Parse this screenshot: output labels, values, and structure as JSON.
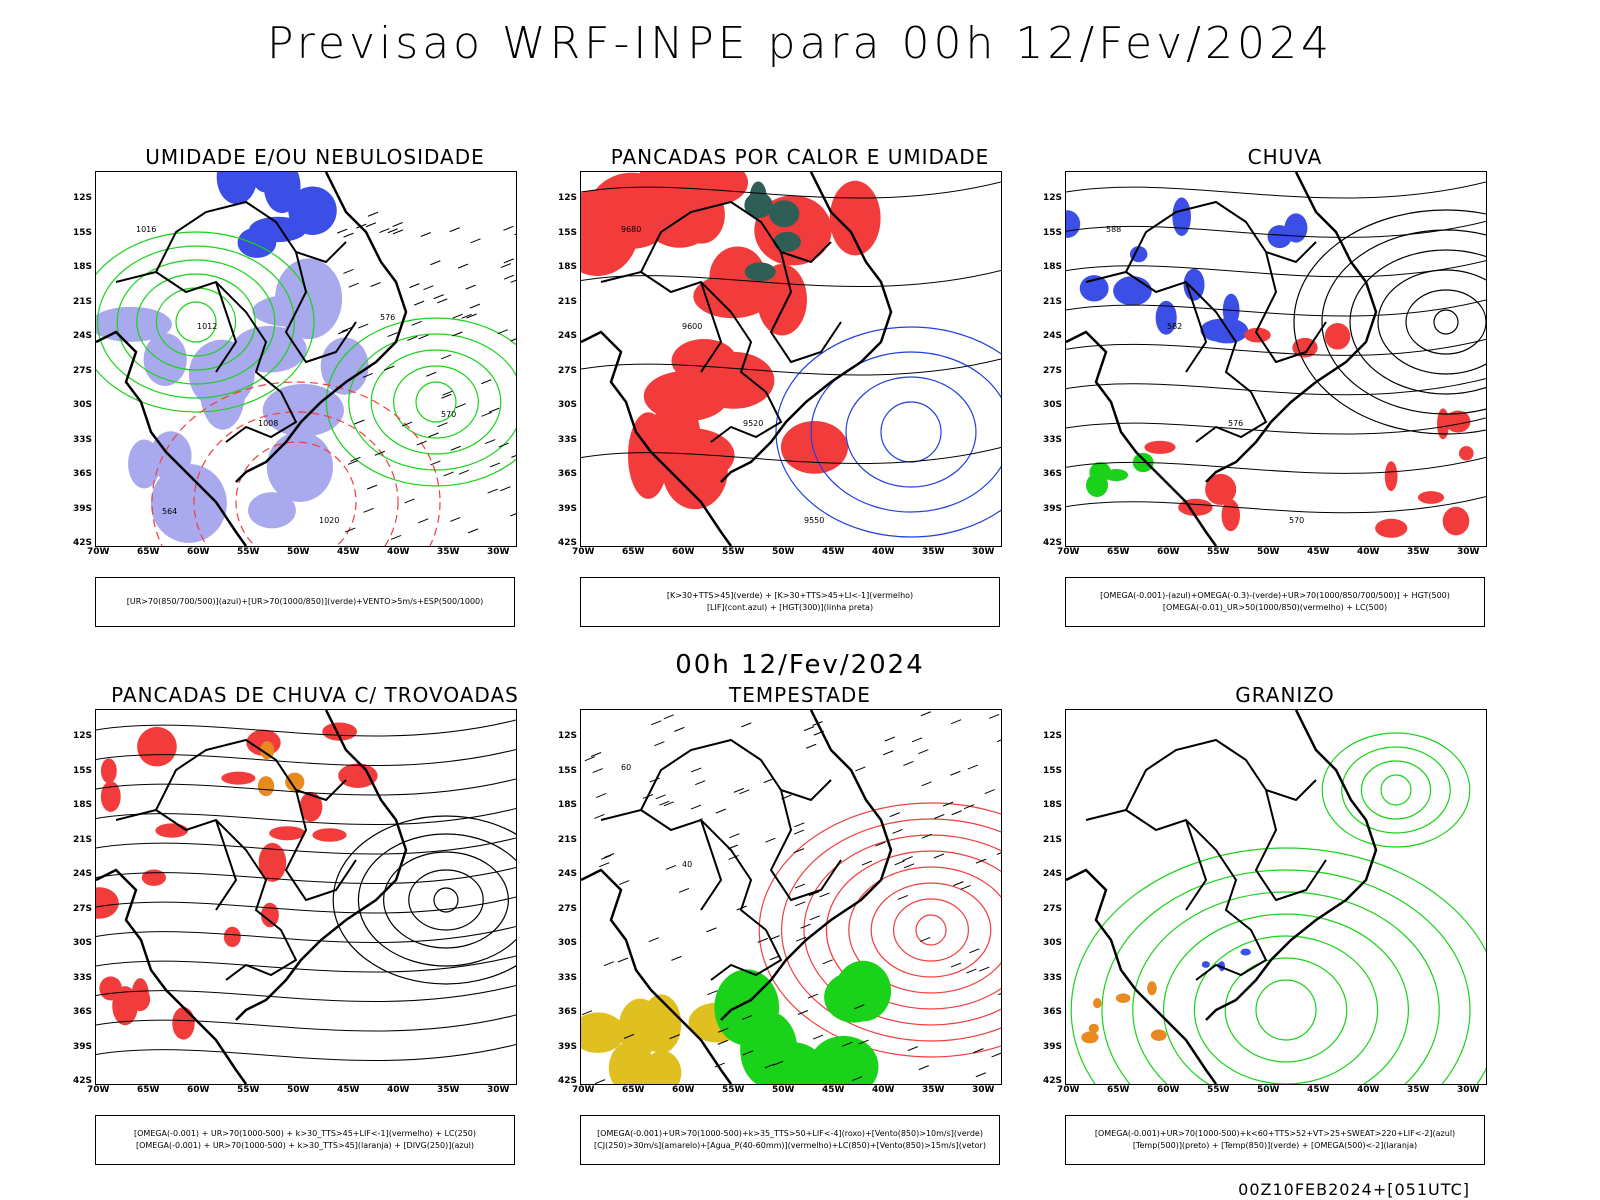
{
  "title": "Previsao WRF-INPE  para 00h 12/Fev/2024",
  "subtitle": "00h 12/Fev/2024",
  "footer": "00Z10FEB2024+[051UTC]",
  "lat_labels": [
    "12S",
    "15S",
    "18S",
    "21S",
    "24S",
    "27S",
    "30S",
    "33S",
    "36S",
    "39S",
    "42S"
  ],
  "lon_labels": [
    "70W",
    "65W",
    "60W",
    "55W",
    "50W",
    "45W",
    "40W",
    "35W",
    "30W"
  ],
  "colors": {
    "blue": "#3b4fe6",
    "lavender": "#a9a9ee",
    "green": "#19d219",
    "red": "#f23c3c",
    "darkgreen": "#2e5e55",
    "orange": "#e88a1f",
    "yellow": "#e0c020"
  },
  "panels": [
    {
      "title": "UMIDADE E/OU NEBULOSIDADE",
      "legend": [
        "[UR>70(850/700/500)](azul)+[UR>70(1000/850)](verde)+VENTO>5m/s+ESP(500/1000)"
      ],
      "labels": [
        "1016",
        "1012",
        "1008",
        "1020",
        "576",
        "570",
        "564"
      ]
    },
    {
      "title": "PANCADAS POR CALOR E UMIDADE",
      "legend": [
        "[K>30+TTS>45](verde) + [K>30+TTS>45+LI<-1](vermelho)",
        "[LIF](cont.azul) + [HGT(300)](linha preta)"
      ],
      "labels": [
        "9680",
        "9600",
        "9520",
        "9550"
      ]
    },
    {
      "title": "CHUVA",
      "legend": [
        "[OMEGA(-0.001)-(azul)+OMEGA(-0.3)-(verde)+UR>70(1000/850/700/500)] + HGT(500)",
        "[OMEGA(-0.01)_UR>50(1000/850)(vermelho) + LC(500)"
      ],
      "labels": [
        "588",
        "582",
        "576",
        "570"
      ]
    },
    {
      "title": "PANCADAS DE CHUVA C/ TROVOADAS",
      "legend": [
        "[OMEGA(-0.001) + UR>70(1000-500) + k>30_TTS>45+LIF<-1](vermelho) + LC(250)",
        "[OMEGA(-0.001) + UR>70(1000-500) + k>30_TTS>45](laranja) + [DIVG(250)](azul)"
      ],
      "labels": []
    },
    {
      "title": "TEMPESTADE",
      "legend": [
        "[OMEGA(-0.001)+UR>70(1000-500)+k>35_TTS>50+LIF<-4](roxo)+[Vento(850)>10m/s](verde)",
        "[CJ(250)>30m/s](amarelo)+[Agua_P(40-60mm)](vermelho)+LC(850)+[Vento(850)>15m/s](vetor)"
      ],
      "labels": [
        "60",
        "40"
      ]
    },
    {
      "title": "GRANIZO",
      "legend": [
        "[OMEGA(-0.001)+UR>70(1000-500)+k<60+TTS>52+VT>25+SWEAT>220+LIF<-2](azul)",
        "[Temp(500)](preto) + [Temp(850)](verde) + [OMEGA(500)<-2](laranja)"
      ],
      "labels": []
    }
  ]
}
